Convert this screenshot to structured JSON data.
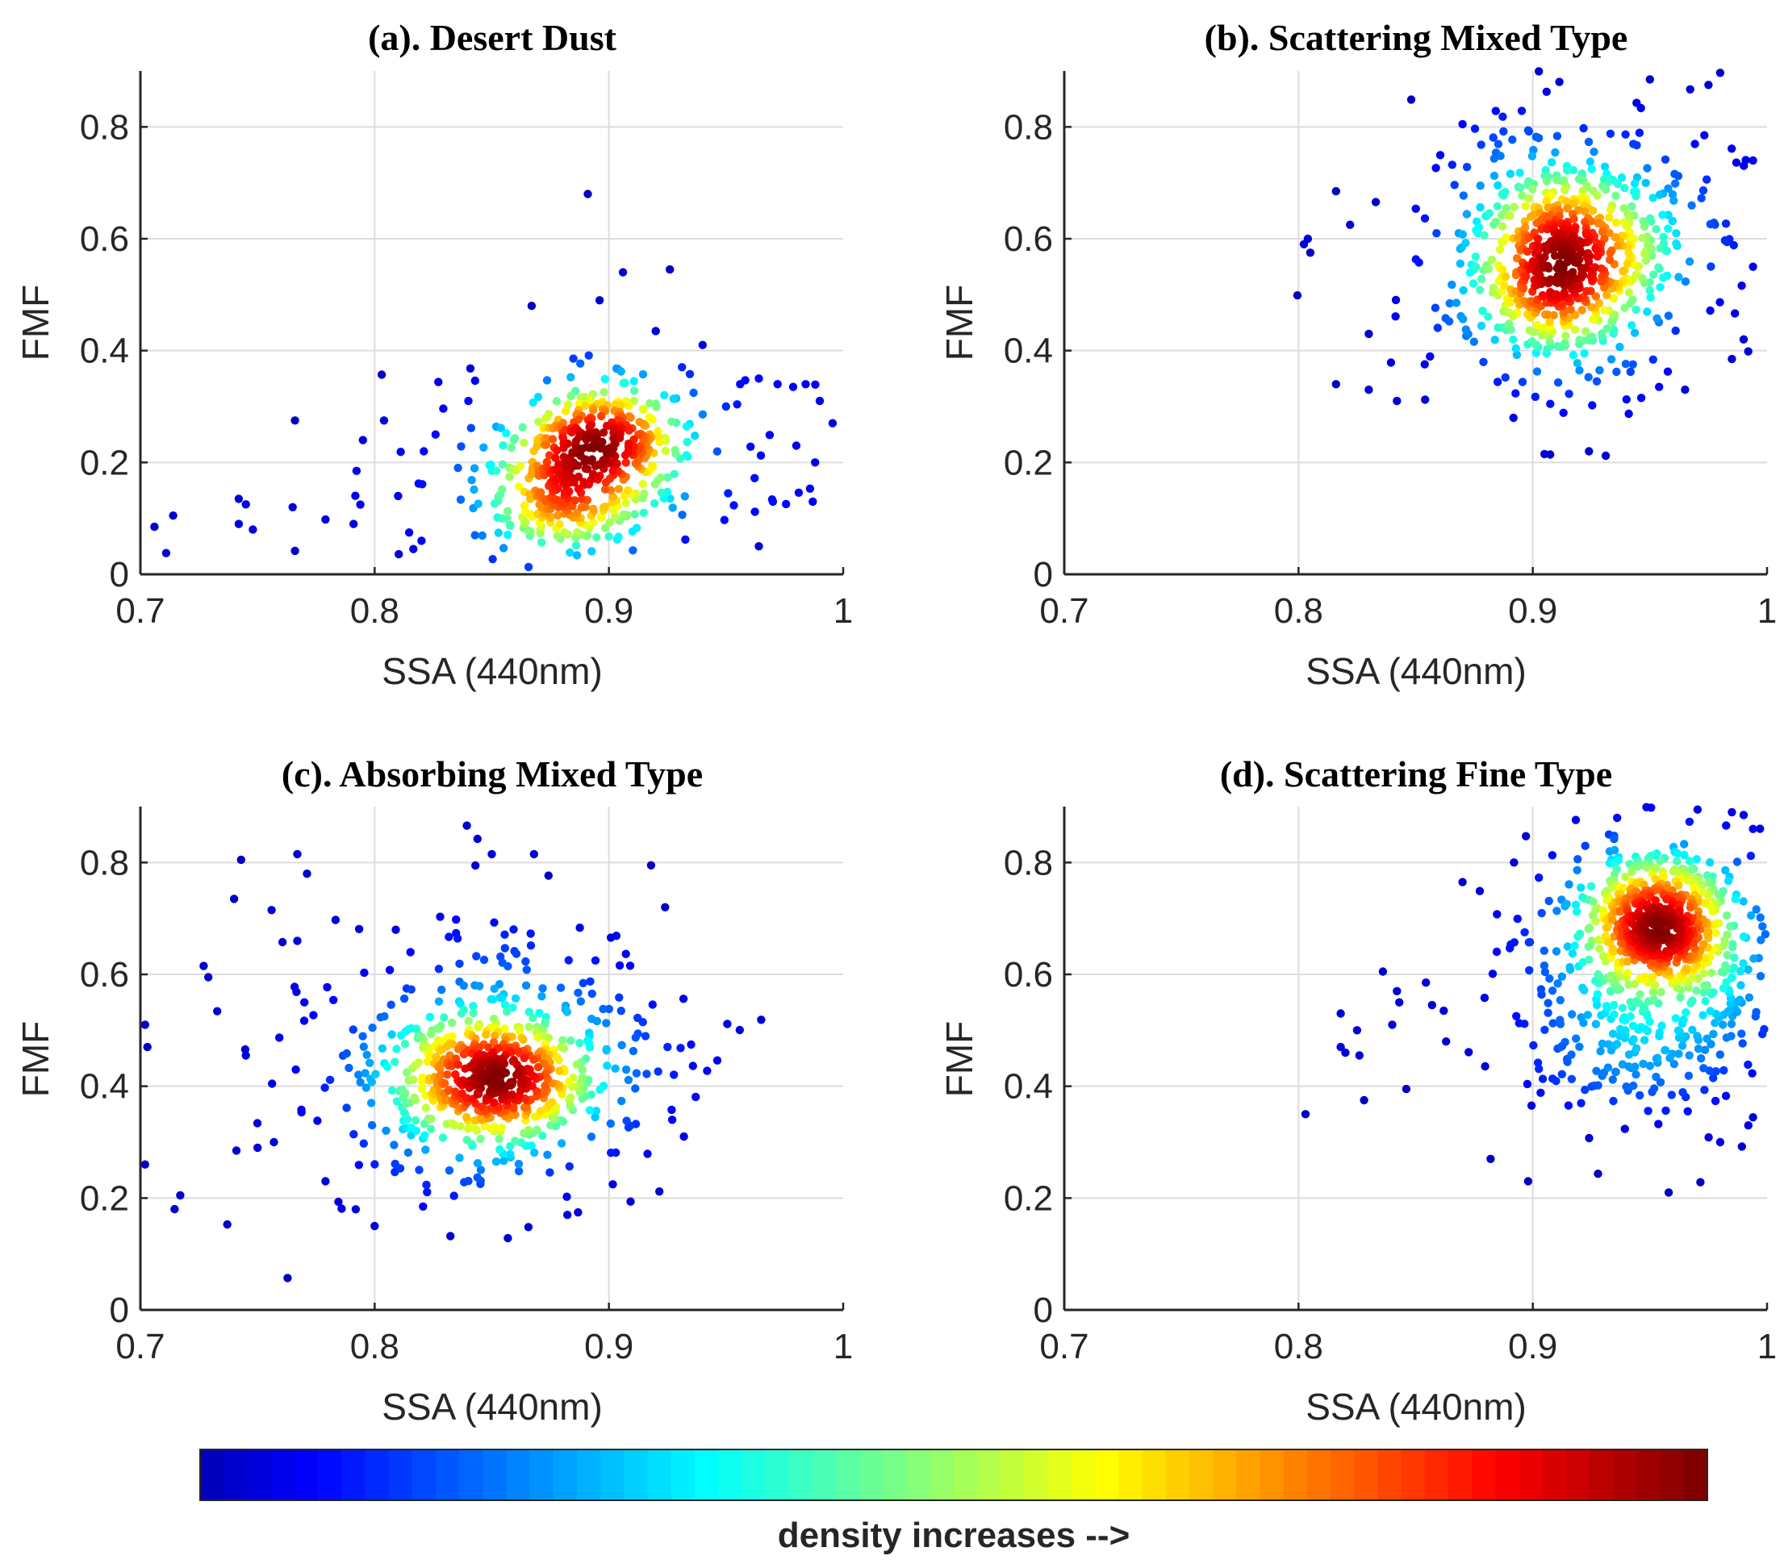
{
  "chart_data": [
    {
      "type": "scatter",
      "title": "(a). Desert Dust",
      "xlabel": "SSA (440nm)",
      "ylabel": "FMF",
      "xlim": [
        0.7,
        1.0
      ],
      "ylim": [
        0,
        0.9
      ],
      "xticks": [
        "0.7",
        "0.8",
        "0.9",
        "1"
      ],
      "yticks": [
        "0",
        "0.2",
        "0.4",
        "0.6",
        "0.8"
      ],
      "grid": true,
      "density_encoding": "colormap jet (blue = low, dark red = high)",
      "clusters": [
        {
          "center_ssa": 0.897,
          "center_fmf": 0.24,
          "spread_ssa": 0.017,
          "spread_fmf": 0.05,
          "points": 260
        },
        {
          "center_ssa": 0.88,
          "center_fmf": 0.13,
          "spread_ssa": 0.016,
          "spread_fmf": 0.045,
          "points": 150
        },
        {
          "center_ssa": 0.89,
          "center_fmf": 0.19,
          "spread_ssa": 0.045,
          "spread_fmf": 0.09,
          "points": 160
        }
      ],
      "outliers": [
        [
          0.706,
          0.085
        ],
        [
          0.711,
          0.038
        ],
        [
          0.714,
          0.105
        ],
        [
          0.742,
          0.09
        ],
        [
          0.742,
          0.135
        ],
        [
          0.745,
          0.125
        ],
        [
          0.748,
          0.08
        ],
        [
          0.765,
          0.12
        ],
        [
          0.766,
          0.275
        ],
        [
          0.766,
          0.042
        ],
        [
          0.779,
          0.098
        ],
        [
          0.791,
          0.09
        ],
        [
          0.795,
          0.24
        ],
        [
          0.804,
          0.275
        ],
        [
          0.81,
          0.14
        ],
        [
          0.82,
          0.06
        ],
        [
          0.821,
          0.22
        ],
        [
          0.826,
          0.25
        ],
        [
          0.84,
          0.31
        ],
        [
          0.867,
          0.48
        ],
        [
          0.891,
          0.68
        ],
        [
          0.896,
          0.49
        ],
        [
          0.906,
          0.54
        ],
        [
          0.926,
          0.545
        ],
        [
          0.92,
          0.435
        ],
        [
          0.94,
          0.41
        ],
        [
          0.964,
          0.35
        ],
        [
          0.972,
          0.34
        ],
        [
          0.98,
          0.23
        ],
        [
          0.984,
          0.34
        ],
        [
          0.988,
          0.2
        ],
        [
          0.99,
          0.31
        ],
        [
          0.987,
          0.13
        ],
        [
          0.97,
          0.13
        ],
        [
          0.964,
          0.05
        ],
        [
          0.956,
          0.34
        ],
        [
          0.95,
          0.3
        ]
      ]
    },
    {
      "type": "scatter",
      "title": "(b). Scattering Mixed Type",
      "xlabel": "SSA (440nm)",
      "ylabel": "FMF",
      "xlim": [
        0.7,
        1.0
      ],
      "ylim": [
        0,
        0.9
      ],
      "xticks": [
        "0.7",
        "0.8",
        "0.9",
        "1"
      ],
      "yticks": [
        "0",
        "0.2",
        "0.4",
        "0.6",
        "0.8"
      ],
      "grid": true,
      "density_encoding": "colormap jet (blue = low, dark red = high)",
      "clusters": [
        {
          "center_ssa": 0.912,
          "center_fmf": 0.56,
          "spread_ssa": 0.016,
          "spread_fmf": 0.085,
          "points": 420
        },
        {
          "center_ssa": 0.92,
          "center_fmf": 0.58,
          "spread_ssa": 0.035,
          "spread_fmf": 0.13,
          "points": 380
        }
      ],
      "outliers": [
        [
          0.804,
          0.6
        ],
        [
          0.805,
          0.575
        ],
        [
          0.816,
          0.685
        ],
        [
          0.816,
          0.34
        ],
        [
          0.822,
          0.625
        ],
        [
          0.83,
          0.43
        ],
        [
          0.83,
          0.33
        ],
        [
          0.842,
          0.31
        ],
        [
          0.87,
          0.805
        ],
        [
          0.905,
          0.215
        ],
        [
          0.924,
          0.22
        ],
        [
          0.95,
          0.885
        ],
        [
          0.975,
          0.875
        ],
        [
          0.994,
          0.74
        ],
        [
          0.994,
          0.55
        ],
        [
          0.985,
          0.385
        ],
        [
          0.965,
          0.33
        ],
        [
          0.99,
          0.42
        ]
      ]
    },
    {
      "type": "scatter",
      "title": "(c). Absorbing Mixed Type",
      "xlabel": "SSA (440nm)",
      "ylabel": "FMF",
      "xlim": [
        0.7,
        1.0
      ],
      "ylim": [
        0,
        0.9
      ],
      "xticks": [
        "0.7",
        "0.8",
        "0.9",
        "1"
      ],
      "yticks": [
        "0",
        "0.2",
        "0.4",
        "0.6",
        "0.8"
      ],
      "grid": true,
      "density_encoding": "colormap jet (blue = low, dark red = high)",
      "clusters": [
        {
          "center_ssa": 0.852,
          "center_fmf": 0.41,
          "spread_ssa": 0.02,
          "spread_fmf": 0.055,
          "points": 330
        },
        {
          "center_ssa": 0.85,
          "center_fmf": 0.43,
          "spread_ssa": 0.04,
          "spread_fmf": 0.13,
          "points": 420
        }
      ],
      "outliers": [
        [
          0.702,
          0.51
        ],
        [
          0.703,
          0.47
        ],
        [
          0.702,
          0.26
        ],
        [
          0.717,
          0.205
        ],
        [
          0.727,
          0.615
        ],
        [
          0.729,
          0.595
        ],
        [
          0.74,
          0.735
        ],
        [
          0.741,
          0.285
        ],
        [
          0.743,
          0.805
        ],
        [
          0.745,
          0.455
        ],
        [
          0.75,
          0.29
        ],
        [
          0.756,
          0.715
        ],
        [
          0.757,
          0.3
        ],
        [
          0.767,
          0.815
        ],
        [
          0.779,
          0.23
        ],
        [
          0.8,
          0.15
        ],
        [
          0.85,
          0.815
        ],
        [
          0.868,
          0.815
        ],
        [
          0.918,
          0.795
        ],
        [
          0.924,
          0.72
        ],
        [
          0.925,
          0.47
        ],
        [
          0.932,
          0.31
        ],
        [
          0.927,
          0.34
        ],
        [
          0.767,
          0.66
        ],
        [
          0.77,
          0.55
        ]
      ]
    },
    {
      "type": "scatter",
      "title": "(d). Scattering Fine Type",
      "xlabel": "SSA (440nm)",
      "ylabel": "FMF",
      "xlim": [
        0.7,
        1.0
      ],
      "ylim": [
        0,
        0.9
      ],
      "xticks": [
        "0.7",
        "0.8",
        "0.9",
        "1"
      ],
      "yticks": [
        "0",
        "0.2",
        "0.4",
        "0.6",
        "0.8"
      ],
      "grid": true,
      "density_encoding": "colormap jet (blue = low, dark red = high)",
      "clusters": [
        {
          "center_ssa": 0.955,
          "center_fmf": 0.7,
          "spread_ssa": 0.013,
          "spread_fmf": 0.06,
          "points": 420
        },
        {
          "center_ssa": 0.95,
          "center_fmf": 0.6,
          "spread_ssa": 0.03,
          "spread_fmf": 0.13,
          "points": 520
        }
      ],
      "outliers": [
        [
          0.803,
          0.35
        ],
        [
          0.818,
          0.53
        ],
        [
          0.818,
          0.47
        ],
        [
          0.82,
          0.46
        ],
        [
          0.825,
          0.5
        ],
        [
          0.826,
          0.455
        ],
        [
          0.828,
          0.375
        ],
        [
          0.836,
          0.605
        ],
        [
          0.84,
          0.51
        ],
        [
          0.842,
          0.57
        ],
        [
          0.843,
          0.55
        ],
        [
          0.846,
          0.395
        ],
        [
          0.857,
          0.545
        ],
        [
          0.862,
          0.535
        ],
        [
          0.863,
          0.48
        ],
        [
          0.87,
          0.765
        ],
        [
          0.882,
          0.27
        ],
        [
          0.898,
          0.23
        ],
        [
          0.892,
          0.8
        ],
        [
          0.936,
          0.88
        ],
        [
          0.958,
          0.21
        ],
        [
          0.985,
          0.89
        ],
        [
          0.99,
          0.885
        ],
        [
          0.994,
          0.86
        ],
        [
          0.992,
          0.33
        ],
        [
          0.98,
          0.3
        ]
      ]
    }
  ],
  "colorbar": {
    "label": "density increases -->",
    "colormap": "jet",
    "segments": 64,
    "colors": {
      "low": "#00008f",
      "high": "#800000"
    }
  }
}
